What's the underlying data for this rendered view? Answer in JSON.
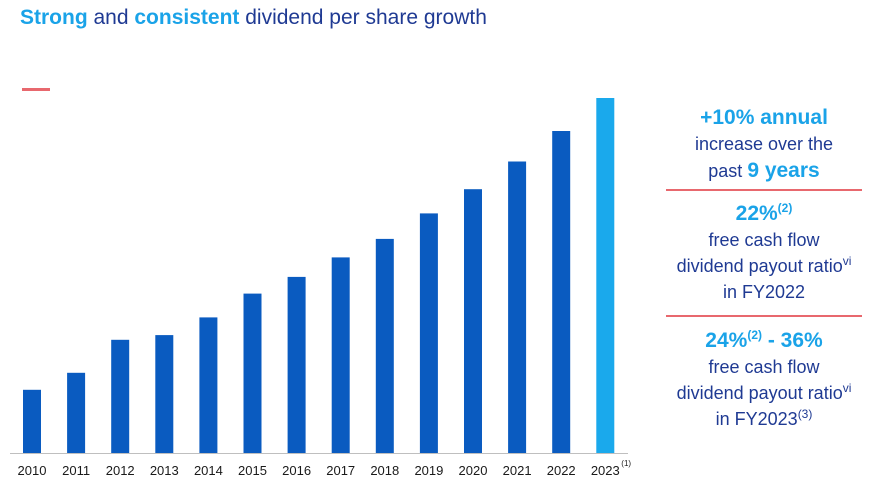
{
  "title": {
    "part1": "Strong",
    "part2": " and ",
    "part3": "consistent",
    "part4": " dividend per share growth"
  },
  "colors": {
    "bar": "#0a5bc0",
    "bar_highlight": "#1aa9ec",
    "accent": "#1aa3e8",
    "text": "#1f3a93",
    "divider": "#e8686e"
  },
  "chart_data": {
    "type": "bar",
    "categories": [
      "2010",
      "2011",
      "2012",
      "2013",
      "2014",
      "2015",
      "2016",
      "2017",
      "2018",
      "2019",
      "2020",
      "2021",
      "2022",
      "2023"
    ],
    "values": [
      17.8,
      22.6,
      31.9,
      33.2,
      38.2,
      44.9,
      49.6,
      55.1,
      60.3,
      67.5,
      74.3,
      82.1,
      90.7,
      100
    ],
    "highlight_index": 13,
    "last_category_footnote": "(1)",
    "title": "",
    "xlabel": "",
    "ylabel": "",
    "ylim": [
      0,
      100
    ],
    "grid": false
  },
  "side": {
    "b1_highlight": "+10% annual",
    "b1_line2": "increase over the",
    "b1_line3_prefix": "past ",
    "b1_line3_highlight": "9 years",
    "b2_highlight": "22%",
    "b2_sup": "(2)",
    "b2_line2": "free cash flow",
    "b2_line3": "dividend payout ratio",
    "b2_line3_sup": "vi",
    "b2_line4": "in FY2022",
    "b3_highlight_a": "24%",
    "b3_sup": "(2)",
    "b3_highlight_b": " - 36%",
    "b3_line2": "free cash flow",
    "b3_line3": "dividend payout ratio",
    "b3_line3_sup": "vi",
    "b3_line4": "in FY2023",
    "b3_line4_sup": "(3)"
  }
}
